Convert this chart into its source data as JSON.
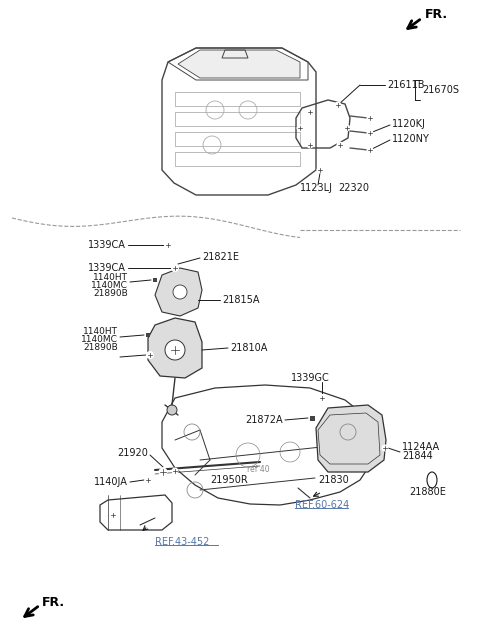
{
  "bg_color": "#ffffff",
  "text_color": "#1a1a1a",
  "ref_color": "#5577aa",
  "dashed_color": "#999999",
  "labels": {
    "FR_top": "FR.",
    "FR_bottom": "FR.",
    "21611B": "21611B",
    "21670S": "21670S",
    "1120KJ": "1120KJ",
    "1120NY": "1120NY",
    "1123LJ": "1123LJ",
    "22320": "22320",
    "1339CA_top": "1339CA",
    "1339CA_mid": "1339CA",
    "21821E": "21821E",
    "21815A": "21815A",
    "1140HT_top": "1140HT",
    "1140MC_top": "1140MC",
    "21890B_top": "21890B",
    "1140HT_bot": "1140HT",
    "1140MC_bot": "1140MC",
    "21890B_bot": "21890B",
    "21810A": "21810A",
    "1339GC": "1339GC",
    "21872A": "21872A",
    "1124AA": "1124AA",
    "21844": "21844",
    "21830": "21830",
    "21880E": "21880E",
    "21920": "21920",
    "1140JA": "1140JA",
    "21950R": "21950R",
    "REF60624": "REF.60-624",
    "REF43452": "REF.43-452"
  },
  "engine_color": "#444444",
  "part_color": "#333333"
}
